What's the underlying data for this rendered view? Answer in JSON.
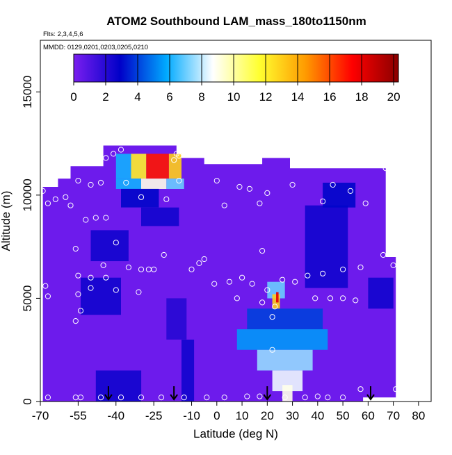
{
  "chart_data": {
    "type": "heatmap",
    "title": "ATOM2 Southbound LAM_mass_180to1150nm",
    "subtitle_flights": "Flts: 2,3,4,5,6",
    "subtitle_dates": "MMDD: 0129,0201,0203,0205,0210",
    "xlabel": "Latitude (deg N)",
    "ylabel": "Altitude (m)",
    "xlim": [
      -70,
      85
    ],
    "ylim": [
      0,
      17500
    ],
    "x_ticks": [
      -70,
      -55,
      -40,
      -25,
      -10,
      0,
      10,
      20,
      30,
      40,
      50,
      60,
      70,
      80
    ],
    "x_tick_labels": [
      "-70",
      "-55",
      "-40",
      "-25",
      "-10",
      "0",
      "10",
      "20",
      "30",
      "40",
      "50",
      "60",
      "70",
      "80"
    ],
    "y_ticks": [
      0,
      5000,
      10000,
      15000
    ],
    "y_tick_labels": [
      "0",
      "5000",
      "10000",
      "15000"
    ],
    "colorbar": {
      "range": [
        0,
        20.3
      ],
      "ticks": [
        0,
        2,
        4,
        6,
        8,
        10,
        12,
        14,
        16,
        18,
        20
      ],
      "tick_labels": [
        "0",
        "2",
        "4",
        "6",
        "8",
        "10",
        "12",
        "14",
        "16",
        "18",
        "20"
      ],
      "colors": [
        "#7a1ef0",
        "#0000c8",
        "#00aaff",
        "#ffffff",
        "#ffff30",
        "#ff9a00",
        "#ff0000",
        "#8a0000"
      ]
    },
    "field_cells": [
      {
        "lat": [
          -40,
          -34
        ],
        "alt": [
          10800,
          12000
        ],
        "value": 6
      },
      {
        "lat": [
          -34,
          -28
        ],
        "alt": [
          10800,
          12000
        ],
        "value": 12
      },
      {
        "lat": [
          -28,
          -19
        ],
        "alt": [
          10800,
          12000
        ],
        "value": 17
      },
      {
        "lat": [
          -19,
          -14
        ],
        "alt": [
          10800,
          12000
        ],
        "value": 13
      },
      {
        "lat": [
          -40,
          -30
        ],
        "alt": [
          10300,
          10800
        ],
        "value": 6
      },
      {
        "lat": [
          -30,
          -20
        ],
        "alt": [
          10300,
          10800
        ],
        "value": 9
      },
      {
        "lat": [
          -20,
          -13
        ],
        "alt": [
          10300,
          10800
        ],
        "value": 7
      },
      {
        "lat": [
          -38,
          -23
        ],
        "alt": [
          9400,
          10300
        ],
        "value": 3
      },
      {
        "lat": [
          -30,
          -15
        ],
        "alt": [
          8500,
          9400
        ],
        "value": 2.5
      },
      {
        "lat": [
          -50,
          -35
        ],
        "alt": [
          6800,
          8300
        ],
        "value": 2.5
      },
      {
        "lat": [
          -54,
          -38
        ],
        "alt": [
          4200,
          6000
        ],
        "value": 2.5
      },
      {
        "lat": [
          -20,
          -12
        ],
        "alt": [
          3000,
          5000
        ],
        "value": 2
      },
      {
        "lat": [
          -14,
          -9
        ],
        "alt": [
          0,
          3000
        ],
        "value": 2.5
      },
      {
        "lat": [
          20,
          27
        ],
        "alt": [
          5000,
          5800
        ],
        "value": 7
      },
      {
        "lat": [
          22,
          25
        ],
        "alt": [
          4500,
          5200
        ],
        "value": 13
      },
      {
        "lat": [
          23.5,
          24.5
        ],
        "alt": [
          4800,
          5300
        ],
        "value": 18
      },
      {
        "lat": [
          12,
          42
        ],
        "alt": [
          3500,
          4500
        ],
        "value": 4
      },
      {
        "lat": [
          8,
          44
        ],
        "alt": [
          2500,
          3500
        ],
        "value": 5.5
      },
      {
        "lat": [
          16,
          38
        ],
        "alt": [
          1500,
          2500
        ],
        "value": 7.5
      },
      {
        "lat": [
          22,
          34
        ],
        "alt": [
          500,
          1500
        ],
        "value": 8.5
      },
      {
        "lat": [
          26,
          30
        ],
        "alt": [
          0,
          800
        ],
        "value": 9
      },
      {
        "lat": [
          35,
          52
        ],
        "alt": [
          5500,
          9500
        ],
        "value": 2.5
      },
      {
        "lat": [
          42,
          55
        ],
        "alt": [
          9400,
          10600
        ],
        "value": 3
      },
      {
        "lat": [
          60,
          70
        ],
        "alt": [
          4500,
          6000
        ],
        "value": 2.5
      },
      {
        "lat": [
          -48,
          -30
        ],
        "alt": [
          0,
          1500
        ],
        "value": 2.5
      }
    ],
    "samples": [
      {
        "lat": -38,
        "alt": 12200
      },
      {
        "lat": -41,
        "alt": 12000
      },
      {
        "lat": -44,
        "alt": 11800
      },
      {
        "lat": -16,
        "alt": 12000
      },
      {
        "lat": -15,
        "alt": 11900
      },
      {
        "lat": -17,
        "alt": 11700
      },
      {
        "lat": -55,
        "alt": 10700
      },
      {
        "lat": -50,
        "alt": 10500
      },
      {
        "lat": -46,
        "alt": 10600
      },
      {
        "lat": -36,
        "alt": 10600
      },
      {
        "lat": -15,
        "alt": 10700
      },
      {
        "lat": 0,
        "alt": 10700
      },
      {
        "lat": 9,
        "alt": 10400
      },
      {
        "lat": 13,
        "alt": 10300
      },
      {
        "lat": 20,
        "alt": 10100
      },
      {
        "lat": 30,
        "alt": 10500
      },
      {
        "lat": 46,
        "alt": 10500
      },
      {
        "lat": 53,
        "alt": 10200
      },
      {
        "lat": 67,
        "alt": 11300
      },
      {
        "lat": -69,
        "alt": 10200
      },
      {
        "lat": -67,
        "alt": 9600
      },
      {
        "lat": -64,
        "alt": 9800
      },
      {
        "lat": -60,
        "alt": 9900
      },
      {
        "lat": -58,
        "alt": 9500
      },
      {
        "lat": -52,
        "alt": 8800
      },
      {
        "lat": -48,
        "alt": 8900
      },
      {
        "lat": -44,
        "alt": 8900
      },
      {
        "lat": -30,
        "alt": 9900
      },
      {
        "lat": -20,
        "alt": 9800
      },
      {
        "lat": 3,
        "alt": 9500
      },
      {
        "lat": 17,
        "alt": 9600
      },
      {
        "lat": 42,
        "alt": 9700
      },
      {
        "lat": 59,
        "alt": 9600
      },
      {
        "lat": -40,
        "alt": 7700
      },
      {
        "lat": -56,
        "alt": 7400
      },
      {
        "lat": -21,
        "alt": 7100
      },
      {
        "lat": -5,
        "alt": 6900
      },
      {
        "lat": -7,
        "alt": 6700
      },
      {
        "lat": 18,
        "alt": 7300
      },
      {
        "lat": 66,
        "alt": 7100
      },
      {
        "lat": 70,
        "alt": 6600
      },
      {
        "lat": -45,
        "alt": 6600
      },
      {
        "lat": -35,
        "alt": 6500
      },
      {
        "lat": -30,
        "alt": 6400
      },
      {
        "lat": -27,
        "alt": 6400
      },
      {
        "lat": -25,
        "alt": 6400
      },
      {
        "lat": -10,
        "alt": 6400
      },
      {
        "lat": -55,
        "alt": 6100
      },
      {
        "lat": -50,
        "alt": 6000
      },
      {
        "lat": -44,
        "alt": 6000
      },
      {
        "lat": 36,
        "alt": 6100
      },
      {
        "lat": 42,
        "alt": 6200
      },
      {
        "lat": 50,
        "alt": 6400
      },
      {
        "lat": 57,
        "alt": 6500
      },
      {
        "lat": -55,
        "alt": 5200
      },
      {
        "lat": -50,
        "alt": 5500
      },
      {
        "lat": -40,
        "alt": 5400
      },
      {
        "lat": -31,
        "alt": 5300
      },
      {
        "lat": -1,
        "alt": 5700
      },
      {
        "lat": 5,
        "alt": 5800
      },
      {
        "lat": 10,
        "alt": 6000
      },
      {
        "lat": 14,
        "alt": 5700
      },
      {
        "lat": 20,
        "alt": 5400
      },
      {
        "lat": 26,
        "alt": 5900
      },
      {
        "lat": 31,
        "alt": 5800
      },
      {
        "lat": 39,
        "alt": 5000
      },
      {
        "lat": 45,
        "alt": 5000
      },
      {
        "lat": 50,
        "alt": 5000
      },
      {
        "lat": 55,
        "alt": 4900
      },
      {
        "lat": -68,
        "alt": 5600
      },
      {
        "lat": -67,
        "alt": 5100
      },
      {
        "lat": 8,
        "alt": 5000
      },
      {
        "lat": 18,
        "alt": 4800
      },
      {
        "lat": 23,
        "alt": 4600
      },
      {
        "lat": -54,
        "alt": 4400
      },
      {
        "lat": -56,
        "alt": 3900
      },
      {
        "lat": 22,
        "alt": 4100
      },
      {
        "lat": 22,
        "alt": 2500
      },
      {
        "lat": -67,
        "alt": 200
      },
      {
        "lat": -56,
        "alt": 200
      },
      {
        "lat": -54,
        "alt": 200
      },
      {
        "lat": -46,
        "alt": 200
      },
      {
        "lat": -38,
        "alt": 200
      },
      {
        "lat": -30,
        "alt": 200
      },
      {
        "lat": -22,
        "alt": 200
      },
      {
        "lat": -13,
        "alt": 200
      },
      {
        "lat": -4,
        "alt": 200
      },
      {
        "lat": 3,
        "alt": 200
      },
      {
        "lat": 12,
        "alt": 250
      },
      {
        "lat": 17,
        "alt": 250
      },
      {
        "lat": 27,
        "alt": 200
      },
      {
        "lat": 35,
        "alt": 200
      },
      {
        "lat": 40,
        "alt": 250
      },
      {
        "lat": 44,
        "alt": 200
      },
      {
        "lat": 50,
        "alt": 200
      },
      {
        "lat": 57,
        "alt": 600
      },
      {
        "lat": 71,
        "alt": 600
      }
    ],
    "markers_lat": [
      -43,
      -17,
      20,
      61
    ],
    "grid": false,
    "legend": "top colorbar"
  }
}
